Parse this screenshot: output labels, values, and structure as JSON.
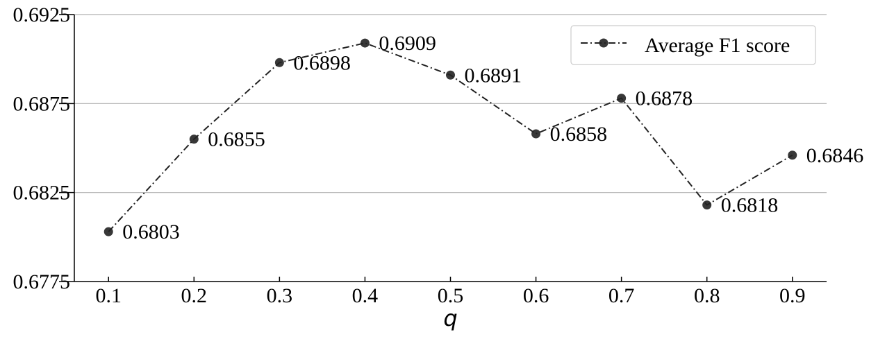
{
  "chart_data": {
    "type": "line",
    "title": "",
    "xlabel": "q",
    "ylabel": "",
    "x": [
      0.1,
      0.2,
      0.3,
      0.4,
      0.5,
      0.6,
      0.7,
      0.8,
      0.9
    ],
    "x_tick_labels": [
      "0.1",
      "0.2",
      "0.3",
      "0.4",
      "0.5",
      "0.6",
      "0.7",
      "0.8",
      "0.9"
    ],
    "y_ticks": [
      0.6775,
      0.6825,
      0.6875,
      0.6925
    ],
    "y_tick_labels": [
      "0.6775",
      "0.6825",
      "0.6875",
      "0.6925"
    ],
    "ylim": [
      0.6775,
      0.6925
    ],
    "xlim": [
      0.06,
      0.94
    ],
    "grid": "horizontal",
    "legend_position": "top-right",
    "series": [
      {
        "name": "Average F1 score",
        "values": [
          0.6803,
          0.6855,
          0.6898,
          0.6909,
          0.6891,
          0.6858,
          0.6878,
          0.6818,
          0.6846
        ],
        "labels": [
          "0.6803",
          "0.6855",
          "0.6898",
          "0.6909",
          "0.6891",
          "0.6858",
          "0.6878",
          "0.6818",
          "0.6846"
        ],
        "color": "#222222",
        "line_style": "dash-dot",
        "marker": "circle"
      }
    ]
  }
}
